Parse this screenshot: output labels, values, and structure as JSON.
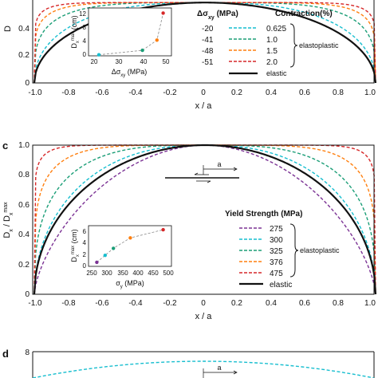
{
  "colors": [
    "#17becf",
    "#1b9e77",
    "#ff7f0e",
    "#d62728",
    "#7b3294"
  ],
  "panel_b": {
    "legend": {
      "title_left": "Δσ",
      "title_left_sub": "xy",
      "title_left_unit": " (MPa)",
      "title_right": "Contraction(%)",
      "rows": [
        {
          "left": "-20",
          "right": "0.625"
        },
        {
          "left": "-41",
          "right": "1.0"
        },
        {
          "left": "-48",
          "right": "1.5"
        },
        {
          "left": "-51",
          "right": "2.0"
        }
      ],
      "elastoplastic": "elastoplastic",
      "elastic": "elastic"
    },
    "inset": {
      "ylabel_main": "D",
      "ylabel_sub": "x",
      "ylabel_sup": "max",
      "ylabel_unit": " (cm)",
      "xlabel_main": "Δσ",
      "xlabel_sub": "xy",
      "xlabel_unit": " (MPa)",
      "xticks": [
        "20",
        "30",
        "40",
        "50"
      ],
      "yticks": [
        "0",
        "4",
        "8",
        "12"
      ]
    },
    "yticks": [
      "0",
      "0.2",
      "0.4"
    ],
    "ylabel": "D",
    "xticks": [
      "-1.0",
      "-0.8",
      "-0.6",
      "-0.4",
      "-0.2",
      "0",
      "0.2",
      "0.4",
      "0.6",
      "0.8",
      "1.0"
    ],
    "xlabel": "x / a"
  },
  "panel_c": {
    "label": "c",
    "yticks": [
      "0",
      "0.2",
      "0.4",
      "0.6",
      "0.8",
      "1.0"
    ],
    "ylabel_main": "D",
    "ylabel_sub1": "x",
    "ylabel_mid": " / D",
    "ylabel_sub2": "x",
    "ylabel_sup": "max",
    "xticks": [
      "-1.0",
      "-0.8",
      "-0.6",
      "-0.4",
      "-0.2",
      "0",
      "0.2",
      "0.4",
      "0.6",
      "0.8",
      "1.0"
    ],
    "xlabel": "x / a",
    "schematic_label": "a",
    "legend": {
      "title": "Yield Strength (MPa)",
      "rows": [
        "275",
        "300",
        "325",
        "376",
        "475"
      ],
      "elastoplastic": "elastoplastic",
      "elastic": "elastic"
    },
    "inset": {
      "ylabel_main": "D",
      "ylabel_sub": "x",
      "ylabel_sup": "max",
      "ylabel_unit": " (cm)",
      "xlabel_main": "σ",
      "xlabel_sub": "y",
      "xlabel_unit": " (MPa)",
      "xticks": [
        "250",
        "300",
        "350",
        "400",
        "450",
        "500"
      ],
      "yticks": [
        "0",
        "2",
        "4",
        "6"
      ]
    }
  },
  "panel_d": {
    "label": "d",
    "ytick": "8",
    "schematic_label": "a"
  },
  "chart_data": [
    {
      "type": "line",
      "x": [
        -1.0,
        -0.9,
        -0.8,
        -0.6,
        -0.4,
        -0.2,
        0,
        0.2,
        0.4,
        0.6,
        0.8,
        0.9,
        1.0
      ],
      "xlabel": "x / a",
      "ylabel": "D",
      "xlim": [
        -1.0,
        1.0
      ],
      "ylim": [
        0,
        0.5
      ],
      "series": [
        {
          "name": "-20 / 0.625",
          "p": 1.6
        },
        {
          "name": "-41 / 1.0",
          "p": 3
        },
        {
          "name": "-48 / 1.5",
          "p": 5
        },
        {
          "name": "-51 / 2.0",
          "p": 8
        },
        {
          "name": "elastic",
          "p": 0.5
        }
      ],
      "inset": {
        "type": "scatter",
        "xlabel": "Δσxy (MPa)",
        "ylabel": "Dx max (cm)",
        "x": [
          20,
          41,
          48,
          51
        ],
        "y": [
          0.3,
          1.6,
          4.6,
          12.5
        ],
        "xlim": [
          15,
          55
        ],
        "ylim": [
          0,
          14
        ]
      }
    },
    {
      "type": "line",
      "xlabel": "x / a",
      "ylabel": "Dx / Dx max",
      "xlim": [
        -1.0,
        1.0
      ],
      "ylim": [
        0,
        1.0
      ],
      "series": [
        {
          "name": "275",
          "p": 0.9
        },
        {
          "name": "300",
          "p": 1.4
        },
        {
          "name": "325",
          "p": 2.2
        },
        {
          "name": "376",
          "p": 4
        },
        {
          "name": "475",
          "p": 10
        },
        {
          "name": "elastic",
          "p": 0.5
        }
      ],
      "inset": {
        "type": "scatter",
        "xlabel": "σy (MPa)",
        "ylabel": "Dx max (cm)",
        "x": [
          275,
          300,
          325,
          376,
          475
        ],
        "y": [
          0.7,
          1.9,
          3.1,
          4.9,
          6.3
        ],
        "xlim": [
          250,
          500
        ],
        "ylim": [
          0,
          7
        ]
      }
    }
  ]
}
